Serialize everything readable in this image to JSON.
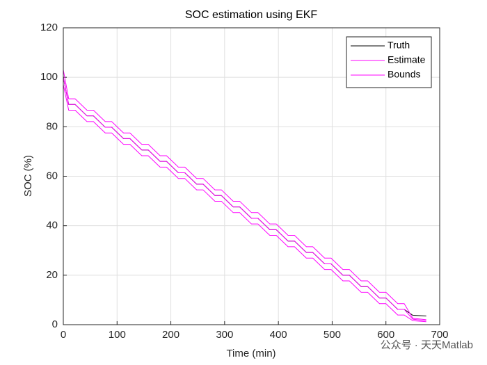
{
  "chart_data": {
    "type": "line",
    "title": "SOC estimation using EKF",
    "xlabel": "Time (min)",
    "ylabel": "SOC (%)",
    "watermark": "公众号 · 天天Matlab",
    "x": [
      0,
      10,
      22,
      44,
      56,
      78,
      90,
      112,
      124,
      146,
      158,
      180,
      192,
      214,
      226,
      248,
      260,
      282,
      294,
      316,
      328,
      350,
      362,
      384,
      396,
      418,
      430,
      452,
      464,
      486,
      498,
      520,
      532,
      554,
      566,
      588,
      600,
      622,
      634,
      650,
      675
    ],
    "series": [
      {
        "name": "Truth",
        "color": "#000000",
        "values": [
          100,
          89,
          89,
          84.4,
          84.4,
          79.8,
          79.8,
          75.2,
          75.2,
          70.6,
          70.6,
          66,
          66,
          61.4,
          61.4,
          56.8,
          56.8,
          52.2,
          52.2,
          47.6,
          47.6,
          43,
          43,
          38.4,
          38.4,
          33.8,
          33.8,
          29.2,
          29.2,
          24.6,
          24.6,
          20,
          20,
          15.4,
          15.4,
          10.8,
          10.8,
          6.2,
          6.2,
          3.8,
          3.5
        ]
      },
      {
        "name": "Estimate",
        "color": "#ff00ff",
        "values": [
          100,
          89,
          89,
          84.4,
          84.4,
          79.8,
          79.8,
          75.2,
          75.2,
          70.6,
          70.6,
          66,
          66,
          61.4,
          61.4,
          56.8,
          56.8,
          52.2,
          52.2,
          47.6,
          47.6,
          43,
          43,
          38.4,
          38.4,
          33.8,
          33.8,
          29.2,
          29.2,
          24.6,
          24.6,
          20,
          20,
          15.4,
          15.4,
          10.8,
          10.8,
          6.2,
          6.2,
          2.2,
          1.6
        ]
      },
      {
        "name": "Bounds",
        "color": "#ff00ff",
        "values": [
          103,
          91.3,
          91.3,
          86.7,
          86.7,
          82.1,
          82.1,
          77.5,
          77.5,
          72.9,
          72.9,
          68.3,
          68.3,
          63.7,
          63.7,
          59.1,
          59.1,
          54.5,
          54.5,
          49.9,
          49.9,
          45.3,
          45.3,
          40.7,
          40.7,
          36.1,
          36.1,
          31.5,
          31.5,
          26.9,
          26.9,
          22.3,
          22.3,
          17.7,
          17.7,
          13.1,
          13.1,
          8.5,
          8.5,
          2.6,
          2
        ],
        "lower": [
          97,
          86.7,
          86.7,
          82.1,
          82.1,
          77.5,
          77.5,
          72.9,
          72.9,
          68.3,
          68.3,
          63.7,
          63.7,
          59.1,
          59.1,
          54.5,
          54.5,
          49.9,
          49.9,
          45.3,
          45.3,
          40.7,
          40.7,
          36.1,
          36.1,
          31.5,
          31.5,
          26.9,
          26.9,
          22.3,
          22.3,
          17.7,
          17.7,
          13.1,
          13.1,
          8.5,
          8.5,
          3.9,
          3.9,
          1.6,
          1.2
        ]
      }
    ],
    "xlim": [
      0,
      700
    ],
    "xticks": [
      0,
      100,
      200,
      300,
      400,
      500,
      600,
      700
    ],
    "ylim": [
      0,
      120
    ],
    "yticks": [
      0,
      20,
      40,
      60,
      80,
      100,
      120
    ],
    "grid": true,
    "legend": "northeast"
  }
}
